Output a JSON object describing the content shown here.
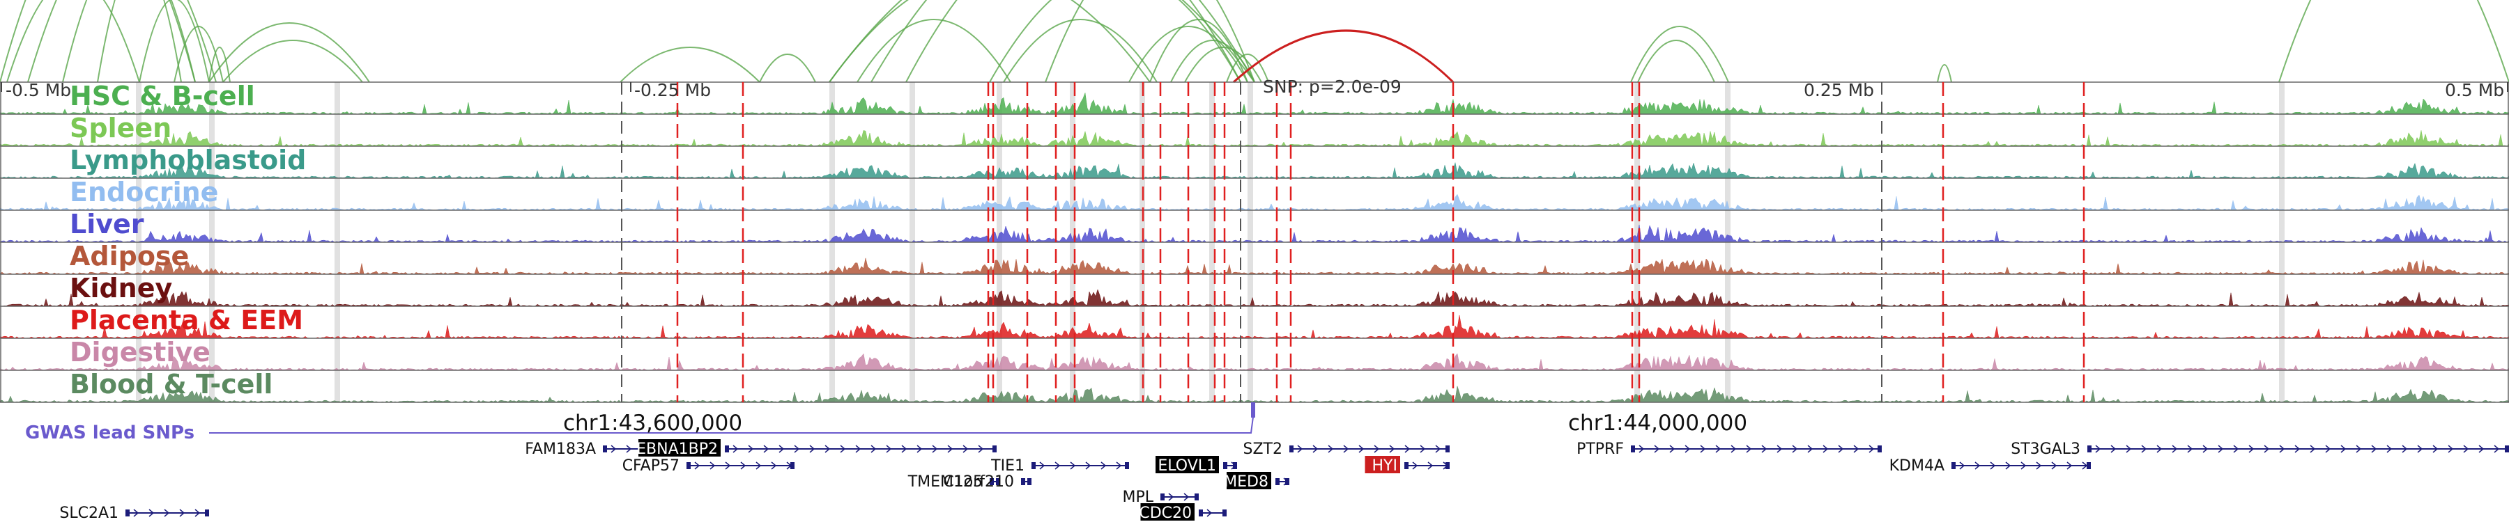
{
  "colors": {
    "arc": "#5aa64b",
    "arc_highlight": "#cc1f1f",
    "snp_line": "#e02020",
    "gwas": "#6a5acd",
    "gene": "#1c1c7a"
  },
  "coords": {
    "left": "-0.5 Mb",
    "mid_left": "-0.25 Mb",
    "mid_right": "0.25 Mb",
    "right": "0.5 Mb",
    "snp": "SNP: p=2.0e-09",
    "chr_left": "chr1:43,600,000",
    "chr_right": "chr1:44,000,000"
  },
  "tracks": [
    {
      "name": "HSC & B-cell",
      "color": "#4caf50"
    },
    {
      "name": "Spleen",
      "color": "#7cc855"
    },
    {
      "name": "Lymphoblastoid",
      "color": "#3a9a8a"
    },
    {
      "name": "Endocrine",
      "color": "#92bdf0"
    },
    {
      "name": "Liver",
      "color": "#4f4ccf"
    },
    {
      "name": "Adipose",
      "color": "#b4573a"
    },
    {
      "name": "Kidney",
      "color": "#6b1010"
    },
    {
      "name": "Placenta & EEM",
      "color": "#dd1a1a"
    },
    {
      "name": "Digestive",
      "color": "#c987a8"
    },
    {
      "name": "Blood & T-cell",
      "color": "#5b8a60"
    }
  ],
  "gwas": {
    "label": "GWAS lead SNPs"
  },
  "genes": [
    {
      "name": "FAM183A",
      "highlight": ""
    },
    {
      "name": "CFAP57",
      "highlight": ""
    },
    {
      "name": "EBNA1BP2",
      "highlight": "#000000"
    },
    {
      "name": "TIE1",
      "highlight": ""
    },
    {
      "name": "TMEM125",
      "highlight": ""
    },
    {
      "name": "C1orf210",
      "highlight": ""
    },
    {
      "name": "MPL",
      "highlight": ""
    },
    {
      "name": "CDC20",
      "highlight": "#000000"
    },
    {
      "name": "SZT2",
      "highlight": ""
    },
    {
      "name": "ELOVL1",
      "highlight": "#000000"
    },
    {
      "name": "MED8",
      "highlight": "#000000"
    },
    {
      "name": "HYI",
      "highlight": "#cc1f1f"
    },
    {
      "name": "PTPRF",
      "highlight": ""
    },
    {
      "name": "KDM4A",
      "highlight": ""
    },
    {
      "name": "ST3GAL3",
      "highlight": ""
    },
    {
      "name": "SLC2A1",
      "highlight": ""
    }
  ]
}
